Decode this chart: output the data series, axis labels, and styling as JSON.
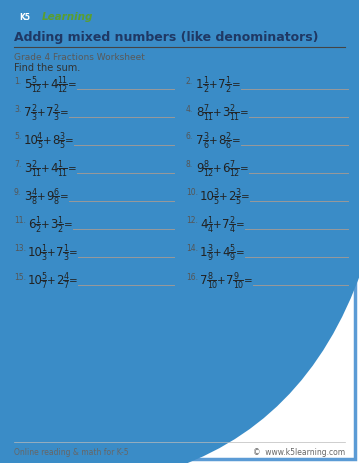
{
  "title": "Adding mixed numbers (like denominators)",
  "subtitle": "Grade 4 Fractions Worksheet",
  "instruction": "Find the sum.",
  "border_color": "#5b9bd5",
  "title_color": "#1f3864",
  "subtitle_color": "#595959",
  "text_color": "#333333",
  "footer_left": "Online reading & math for K-5",
  "footer_right": "©  www.k5learning.com",
  "problems": [
    {
      "num": "1",
      "w1": "5",
      "n1": "5",
      "d1": "12",
      "w2": "4",
      "n2": "11",
      "d2": "12"
    },
    {
      "num": "2",
      "w1": "1",
      "n1": "1",
      "d1": "2",
      "w2": "7",
      "n2": "1",
      "d2": "2"
    },
    {
      "num": "3",
      "w1": "7",
      "n1": "2",
      "d1": "3",
      "w2": "7",
      "n2": "2",
      "d2": "3"
    },
    {
      "num": "4",
      "w1": "8",
      "n1": "7",
      "d1": "11",
      "w2": "3",
      "n2": "2",
      "d2": "11"
    },
    {
      "num": "5",
      "w1": "10",
      "n1": "4",
      "d1": "5",
      "w2": "8",
      "n2": "3",
      "d2": "5"
    },
    {
      "num": "6",
      "w1": "7",
      "n1": "3",
      "d1": "6",
      "w2": "8",
      "n2": "2",
      "d2": "6"
    },
    {
      "num": "7",
      "w1": "3",
      "n1": "2",
      "d1": "11",
      "w2": "4",
      "n2": "1",
      "d2": "11"
    },
    {
      "num": "8",
      "w1": "9",
      "n1": "8",
      "d1": "12",
      "w2": "6",
      "n2": "7",
      "d2": "12"
    },
    {
      "num": "9",
      "w1": "3",
      "n1": "4",
      "d1": "8",
      "w2": "9",
      "n2": "6",
      "d2": "8"
    },
    {
      "num": "10",
      "w1": "10",
      "n1": "3",
      "d1": "5",
      "w2": "2",
      "n2": "3",
      "d2": "5"
    },
    {
      "num": "11",
      "w1": "6",
      "n1": "1",
      "d1": "2",
      "w2": "3",
      "n2": "1",
      "d2": "2"
    },
    {
      "num": "12",
      "w1": "4",
      "n1": "1",
      "d1": "4",
      "w2": "7",
      "n2": "2",
      "d2": "4"
    },
    {
      "num": "13",
      "w1": "10",
      "n1": "1",
      "d1": "3",
      "w2": "7",
      "n2": "1",
      "d2": "3"
    },
    {
      "num": "14",
      "w1": "1",
      "n1": "3",
      "d1": "9",
      "w2": "4",
      "n2": "5",
      "d2": "9"
    },
    {
      "num": "15",
      "w1": "10",
      "n1": "5",
      "d1": "7",
      "w2": "2",
      "n2": "4",
      "d2": "7"
    },
    {
      "num": "16",
      "w1": "7",
      "n1": "8",
      "d1": "10",
      "w2": "7",
      "n2": "9",
      "d2": "10"
    }
  ]
}
